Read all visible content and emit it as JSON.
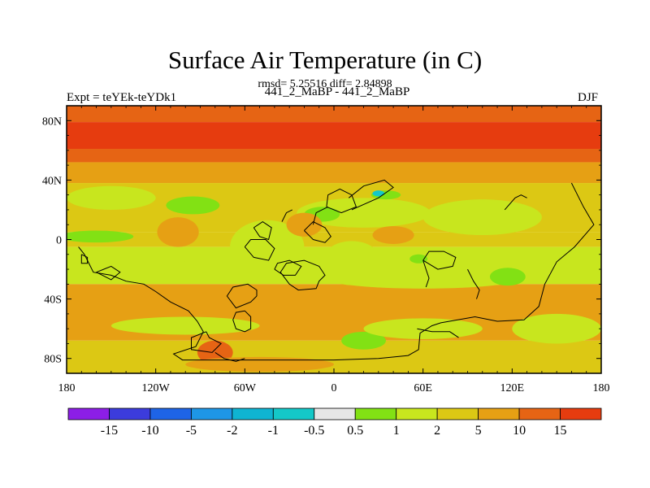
{
  "chart_data": {
    "type": "heatmap",
    "title": "Surface Air Temperature (in C)",
    "subtitle": "rmsd= 5.25516 diff= 2.84898",
    "left_label": "Expt = teYEk-teYDk1",
    "center_label": "441_2_MaBP - 441_2_MaBP",
    "right_label": "DJF",
    "x_ticks": [
      "180",
      "120W",
      "60W",
      "0",
      "60E",
      "120E",
      "180"
    ],
    "x_tick_values": [
      -180,
      -120,
      -60,
      0,
      60,
      120,
      180
    ],
    "xlim": [
      -180,
      180
    ],
    "y_ticks": [
      "80N",
      "40N",
      "0",
      "40S",
      "80S"
    ],
    "y_tick_values": [
      80,
      40,
      0,
      -40,
      -80
    ],
    "ylim": [
      -90,
      90
    ],
    "colorbar": {
      "colors": [
        "#8c1ee6",
        "#3c3cdc",
        "#1e64e6",
        "#1e96e6",
        "#0fb4d2",
        "#14c8c8",
        "#e6e6e6",
        "#82e114",
        "#c8e61e",
        "#dcc814",
        "#e6a014",
        "#e66414",
        "#e63c0f"
      ],
      "labels": [
        "-15",
        "-10",
        "-5",
        "-2",
        "-1",
        "-0.5",
        "0.5",
        "1",
        "2",
        "5",
        "10",
        "15"
      ]
    },
    "latitude_bands": [
      {
        "lat_from": 90,
        "lat_to": 79,
        "class": "10"
      },
      {
        "lat_from": 79,
        "lat_to": 61,
        "class": "15"
      },
      {
        "lat_from": 61,
        "lat_to": 52,
        "class": "10"
      },
      {
        "lat_from": 52,
        "lat_to": 38,
        "class": "5"
      },
      {
        "lat_from": 38,
        "lat_to": 5,
        "class": "2"
      },
      {
        "lat_from": 5,
        "lat_to": -5,
        "class": "2"
      },
      {
        "lat_from": -5,
        "lat_to": -30,
        "class": "1"
      },
      {
        "lat_from": -30,
        "lat_to": -68,
        "class": "5"
      },
      {
        "lat_from": -68,
        "lat_to": -90,
        "class": "2"
      }
    ],
    "regions": [
      {
        "class": "1",
        "shape": "blob",
        "lon": -150,
        "lat": 28,
        "rx": 30,
        "ry": 8
      },
      {
        "class": "0.5",
        "shape": "blob",
        "lon": -95,
        "lat": 23,
        "rx": 18,
        "ry": 6
      },
      {
        "class": "0.5",
        "shape": "blob",
        "lon": -160,
        "lat": 2,
        "rx": 25,
        "ry": 4
      },
      {
        "class": "1",
        "shape": "blob",
        "lon": 20,
        "lat": 18,
        "rx": 45,
        "ry": 10
      },
      {
        "class": "0.5",
        "shape": "blob",
        "lon": -8,
        "lat": 17,
        "rx": 12,
        "ry": 5
      },
      {
        "class": "0.5",
        "shape": "blob",
        "lon": 35,
        "lat": 30,
        "rx": 10,
        "ry": 3
      },
      {
        "class": "-1",
        "shape": "blob",
        "lon": 30,
        "lat": 31,
        "rx": 4,
        "ry": 2
      },
      {
        "class": "1",
        "shape": "blob",
        "lon": 100,
        "lat": 15,
        "rx": 40,
        "ry": 12
      },
      {
        "class": "1",
        "shape": "blob",
        "lon": -40,
        "lat": -20,
        "rx": 80,
        "ry": 8
      },
      {
        "class": "1",
        "shape": "blob",
        "lon": 60,
        "lat": -25,
        "rx": 70,
        "ry": 8
      },
      {
        "class": "0.5",
        "shape": "blob",
        "lon": 117,
        "lat": -25,
        "rx": 12,
        "ry": 6
      },
      {
        "class": "0.5",
        "shape": "blob",
        "lon": 57,
        "lat": -13,
        "rx": 6,
        "ry": 3
      },
      {
        "class": "1",
        "shape": "blob",
        "lon": -45,
        "lat": -5,
        "rx": 25,
        "ry": 18
      },
      {
        "class": "1",
        "shape": "blob",
        "lon": 12,
        "lat": -15,
        "rx": 20,
        "ry": 14
      },
      {
        "class": "5",
        "shape": "blob",
        "lon": -105,
        "lat": 5,
        "rx": 14,
        "ry": 10
      },
      {
        "class": "5",
        "shape": "blob",
        "lon": -20,
        "lat": 10,
        "rx": 12,
        "ry": 8
      },
      {
        "class": "5",
        "shape": "blob",
        "lon": 40,
        "lat": 3,
        "rx": 14,
        "ry": 6
      },
      {
        "class": "1",
        "shape": "blob",
        "lon": -100,
        "lat": -58,
        "rx": 50,
        "ry": 6
      },
      {
        "class": "0.5",
        "shape": "blob",
        "lon": 20,
        "lat": -68,
        "rx": 15,
        "ry": 6
      },
      {
        "class": "0.5",
        "shape": "blob",
        "lon": 145,
        "lat": -65,
        "rx": 18,
        "ry": 4
      },
      {
        "class": "1",
        "shape": "blob",
        "lon": 150,
        "lat": -60,
        "rx": 30,
        "ry": 10
      },
      {
        "class": "1",
        "shape": "blob",
        "lon": 60,
        "lat": -60,
        "rx": 40,
        "ry": 7
      },
      {
        "class": "2",
        "shape": "blob",
        "lon": 100,
        "lat": -82,
        "rx": 60,
        "ry": 6
      },
      {
        "class": "10",
        "shape": "blob",
        "lon": -80,
        "lat": -76,
        "rx": 12,
        "ry": 8
      },
      {
        "class": "5",
        "shape": "blob",
        "lon": -50,
        "lat": -84,
        "rx": 50,
        "ry": 5
      }
    ],
    "coastlines": [
      [
        [
          -172,
          -5
        ],
        [
          -168,
          -10
        ],
        [
          -162,
          -22
        ],
        [
          -150,
          -24
        ],
        [
          -140,
          -28
        ],
        [
          -128,
          -30
        ],
        [
          -120,
          -35
        ],
        [
          -110,
          -42
        ],
        [
          -98,
          -48
        ],
        [
          -92,
          -55
        ],
        [
          -88,
          -62
        ],
        [
          -93,
          -72
        ],
        [
          -108,
          -77
        ],
        [
          -102,
          -81
        ],
        [
          -70,
          -81
        ],
        [
          -30,
          -81
        ],
        [
          0,
          -81
        ],
        [
          30,
          -80
        ],
        [
          50,
          -78
        ],
        [
          57,
          -74
        ],
        [
          58,
          -63
        ],
        [
          66,
          -58
        ],
        [
          72,
          -56
        ],
        [
          95,
          -52
        ],
        [
          110,
          -55
        ],
        [
          128,
          -54
        ],
        [
          138,
          -45
        ],
        [
          142,
          -30
        ],
        [
          150,
          -15
        ],
        [
          162,
          -5
        ],
        [
          175,
          10
        ],
        [
          168,
          22
        ],
        [
          160,
          38
        ]
      ],
      [
        [
          -60,
          -48
        ],
        [
          -56,
          -52
        ],
        [
          -56,
          -60
        ],
        [
          -60,
          -62
        ],
        [
          -66,
          -60
        ],
        [
          -68,
          -54
        ],
        [
          -66,
          -49
        ],
        [
          -60,
          -48
        ]
      ],
      [
        [
          -52,
          -38
        ],
        [
          -56,
          -42
        ],
        [
          -66,
          -46
        ],
        [
          -72,
          -38
        ],
        [
          -68,
          -32
        ],
        [
          -58,
          -30
        ],
        [
          -52,
          -34
        ],
        [
          -52,
          -38
        ]
      ],
      [
        [
          -30,
          -30
        ],
        [
          -24,
          -34
        ],
        [
          -12,
          -33
        ],
        [
          -10,
          -28
        ],
        [
          -6,
          -24
        ],
        [
          -10,
          -18
        ],
        [
          -20,
          -14
        ],
        [
          -32,
          -16
        ],
        [
          -36,
          -22
        ],
        [
          -30,
          -30
        ]
      ],
      [
        [
          -20,
          6
        ],
        [
          -14,
          0
        ],
        [
          -6,
          -2
        ],
        [
          -2,
          2
        ],
        [
          -6,
          8
        ],
        [
          -14,
          12
        ],
        [
          -20,
          6
        ]
      ],
      [
        [
          -54,
          8
        ],
        [
          -50,
          2
        ],
        [
          -44,
          0
        ],
        [
          -42,
          8
        ],
        [
          -48,
          12
        ],
        [
          -54,
          8
        ]
      ],
      [
        [
          -160,
          -22
        ],
        [
          -150,
          -18
        ],
        [
          -144,
          -22
        ],
        [
          -150,
          -27
        ],
        [
          -160,
          -22
        ]
      ],
      [
        [
          -60,
          -5
        ],
        [
          -54,
          -12
        ],
        [
          -44,
          -14
        ],
        [
          -40,
          -6
        ],
        [
          -46,
          0
        ],
        [
          -56,
          0
        ],
        [
          -60,
          -5
        ]
      ],
      [
        [
          -40,
          -20
        ],
        [
          -34,
          -24
        ],
        [
          -26,
          -24
        ],
        [
          -22,
          -18
        ],
        [
          -30,
          -14
        ],
        [
          -38,
          -16
        ],
        [
          -40,
          -20
        ]
      ],
      [
        [
          -5,
          22
        ],
        [
          5,
          18
        ],
        [
          15,
          22
        ],
        [
          12,
          30
        ],
        [
          4,
          34
        ],
        [
          -4,
          30
        ],
        [
          -5,
          22
        ]
      ],
      [
        [
          12,
          20
        ],
        [
          30,
          28
        ],
        [
          40,
          35
        ],
        [
          34,
          40
        ],
        [
          20,
          36
        ],
        [
          10,
          28
        ]
      ],
      [
        [
          -14,
          10
        ],
        [
          -12,
          18
        ],
        [
          -4,
          22
        ]
      ],
      [
        [
          -35,
          12
        ],
        [
          -32,
          18
        ],
        [
          -28,
          20
        ]
      ],
      [
        [
          115,
          20
        ],
        [
          122,
          28
        ],
        [
          126,
          30
        ],
        [
          130,
          28
        ]
      ],
      [
        [
          60,
          -14
        ],
        [
          70,
          -20
        ],
        [
          80,
          -18
        ],
        [
          82,
          -12
        ],
        [
          74,
          -8
        ],
        [
          64,
          -8
        ],
        [
          60,
          -14
        ]
      ],
      [
        [
          56,
          -60
        ],
        [
          66,
          -62
        ],
        [
          78,
          -62
        ],
        [
          84,
          -66
        ]
      ],
      [
        [
          -170,
          -10
        ],
        [
          -166,
          -12
        ],
        [
          -166,
          -16
        ],
        [
          -170,
          -16
        ],
        [
          -170,
          -10
        ]
      ],
      [
        [
          -86,
          -62
        ],
        [
          -84,
          -66
        ],
        [
          -76,
          -70
        ],
        [
          -82,
          -76
        ],
        [
          -96,
          -74
        ],
        [
          -96,
          -66
        ],
        [
          -86,
          -62
        ]
      ],
      [
        [
          -80,
          -76
        ],
        [
          -74,
          -80
        ],
        [
          -66,
          -82
        ],
        [
          -60,
          -80
        ]
      ],
      [
        [
          60,
          -14
        ],
        [
          62,
          -20
        ],
        [
          64,
          -26
        ],
        [
          62,
          -32
        ]
      ],
      [
        [
          90,
          -20
        ],
        [
          94,
          -28
        ],
        [
          98,
          -34
        ],
        [
          96,
          -40
        ]
      ]
    ]
  }
}
